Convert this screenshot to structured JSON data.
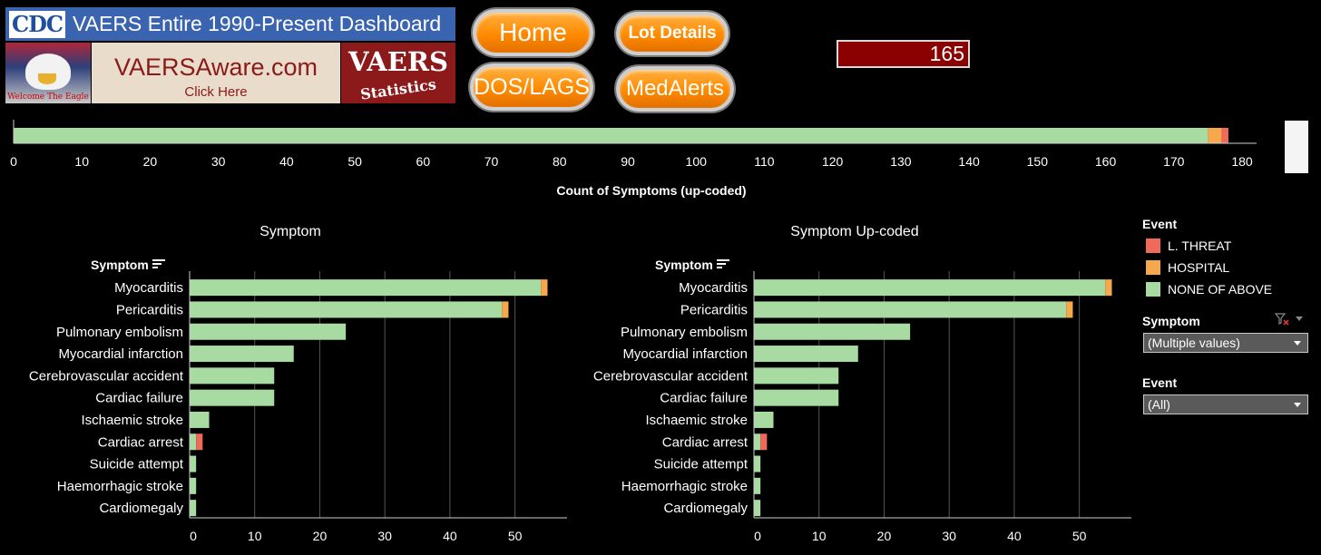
{
  "banner": {
    "cdc_logo_text": "CDC",
    "title": "VAERS Entire 1990-Present Dashboard",
    "eagle_caption": "Welcome The Eagle",
    "aware_title": "VAERSAware.com",
    "aware_sub": "Click Here",
    "stats_title": "VAERS",
    "stats_sub": "Statistics"
  },
  "nav": {
    "home": "Home",
    "lot_details": "Lot Details",
    "dos_lags": "DOS/LAGS",
    "medalerts": "MedAlerts"
  },
  "count_value": "165",
  "colors": {
    "none": "#a8dba2",
    "hospital": "#f7a84d",
    "threat": "#ef6a5a",
    "background": "#000000",
    "count_box": "#8b0000"
  },
  "legend": {
    "title": "Event",
    "items": [
      {
        "label": "L. THREAT",
        "color": "#ef6a5a"
      },
      {
        "label": "HOSPITAL",
        "color": "#f7a84d"
      },
      {
        "label": "NONE OF ABOVE",
        "color": "#a8dba2"
      }
    ]
  },
  "filters": {
    "symptom_label": "Symptom",
    "symptom_value": "(Multiple values)",
    "event_label": "Event",
    "event_value": "(All)"
  },
  "chart_data": [
    {
      "type": "bar",
      "orientation": "horizontal",
      "stacked": true,
      "xlabel": "Count of Symptoms (up-coded)",
      "xlim": [
        0,
        180
      ],
      "xticks": [
        0,
        10,
        20,
        30,
        40,
        50,
        60,
        70,
        80,
        90,
        100,
        110,
        120,
        130,
        140,
        150,
        160,
        170,
        180
      ],
      "categories": [
        ""
      ],
      "series": [
        {
          "name": "NONE OF ABOVE",
          "values": [
            175
          ]
        },
        {
          "name": "HOSPITAL",
          "values": [
            2
          ]
        },
        {
          "name": "L. THREAT",
          "values": [
            1
          ]
        }
      ]
    },
    {
      "type": "bar",
      "orientation": "horizontal",
      "stacked": true,
      "title": "Symptom",
      "ylabel": "Symptom",
      "xlim": [
        0,
        58
      ],
      "xticks": [
        0,
        10,
        20,
        30,
        40,
        50
      ],
      "categories": [
        "Myocarditis",
        "Pericarditis",
        "Pulmonary embolism",
        "Myocardial infarction",
        "Cerebrovascular accident",
        "Cardiac failure",
        "Ischaemic stroke",
        "Cardiac arrest",
        "Suicide attempt",
        "Haemorrhagic stroke",
        "Cardiomegaly"
      ],
      "series": [
        {
          "name": "NONE OF ABOVE",
          "values": [
            54,
            48,
            24,
            16,
            13,
            13,
            3,
            1,
            1,
            1,
            1
          ]
        },
        {
          "name": "HOSPITAL",
          "values": [
            1,
            1,
            0,
            0,
            0,
            0,
            0,
            0,
            0,
            0,
            0
          ]
        },
        {
          "name": "L. THREAT",
          "values": [
            0,
            0,
            0,
            0,
            0,
            0,
            0,
            1,
            0,
            0,
            0
          ]
        }
      ]
    },
    {
      "type": "bar",
      "orientation": "horizontal",
      "stacked": true,
      "title": "Symptom Up-coded",
      "ylabel": "Symptom",
      "xlim": [
        0,
        58
      ],
      "xticks": [
        0,
        10,
        20,
        30,
        40,
        50
      ],
      "categories": [
        "Myocarditis",
        "Pericarditis",
        "Pulmonary embolism",
        "Myocardial infarction",
        "Cerebrovascular accident",
        "Cardiac failure",
        "Ischaemic stroke",
        "Cardiac arrest",
        "Suicide attempt",
        "Haemorrhagic stroke",
        "Cardiomegaly"
      ],
      "series": [
        {
          "name": "NONE OF ABOVE",
          "values": [
            54,
            48,
            24,
            16,
            13,
            13,
            3,
            1,
            1,
            1,
            1
          ]
        },
        {
          "name": "HOSPITAL",
          "values": [
            1,
            1,
            0,
            0,
            0,
            0,
            0,
            0,
            0,
            0,
            0
          ]
        },
        {
          "name": "L. THREAT",
          "values": [
            0,
            0,
            0,
            0,
            0,
            0,
            0,
            1,
            0,
            0,
            0
          ]
        }
      ]
    }
  ]
}
